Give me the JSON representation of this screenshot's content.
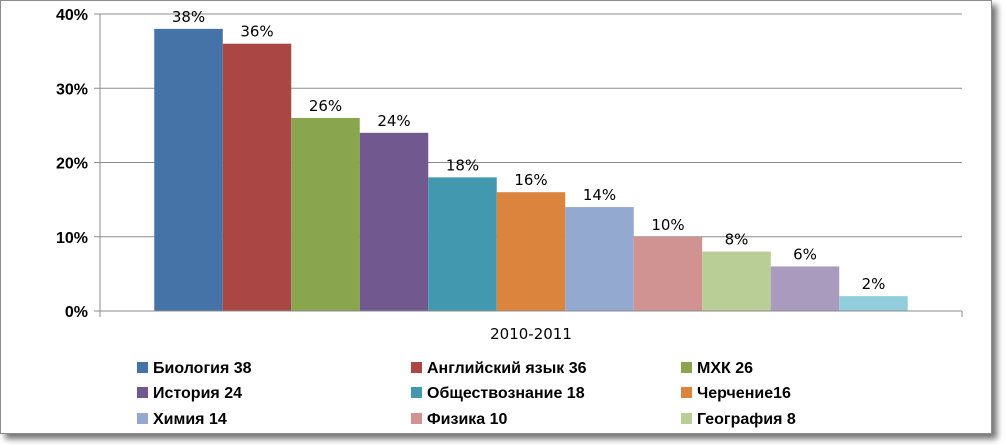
{
  "chart_data": {
    "type": "bar",
    "categories": [
      "2010-2011"
    ],
    "series": [
      {
        "name": "Биология 38",
        "values": [
          38
        ],
        "label": "38%",
        "color": "#4572a7"
      },
      {
        "name": "Английский язык 36",
        "values": [
          36
        ],
        "label": "36%",
        "color": "#aa4643"
      },
      {
        "name": "МХК 26",
        "values": [
          26
        ],
        "label": "26%",
        "color": "#89a54e"
      },
      {
        "name": "История 24",
        "values": [
          24
        ],
        "label": "24%",
        "color": "#71588f"
      },
      {
        "name": "Обществознание 18",
        "values": [
          18
        ],
        "label": "18%",
        "color": "#4198af"
      },
      {
        "name": "Черчение16",
        "values": [
          16
        ],
        "label": "16%",
        "color": "#db843d"
      },
      {
        "name": "Химия 14",
        "values": [
          14
        ],
        "label": "14%",
        "color": "#93a9cf"
      },
      {
        "name": "Физика 10",
        "values": [
          10
        ],
        "label": "10%",
        "color": "#d19392"
      },
      {
        "name": "География 8",
        "values": [
          8
        ],
        "label": "8%",
        "color": "#b9cd96"
      },
      {
        "name": "",
        "values": [
          6
        ],
        "label": "6%",
        "color": "#a99bbd"
      },
      {
        "name": "",
        "values": [
          2
        ],
        "label": "2%",
        "color": "#92cddc"
      }
    ],
    "yticks": [
      "0%",
      "10%",
      "20%",
      "30%",
      "40%"
    ],
    "ylim": [
      0,
      40
    ],
    "grid": true,
    "legend_position": "bottom",
    "title": "",
    "xlabel": "",
    "ylabel": ""
  }
}
